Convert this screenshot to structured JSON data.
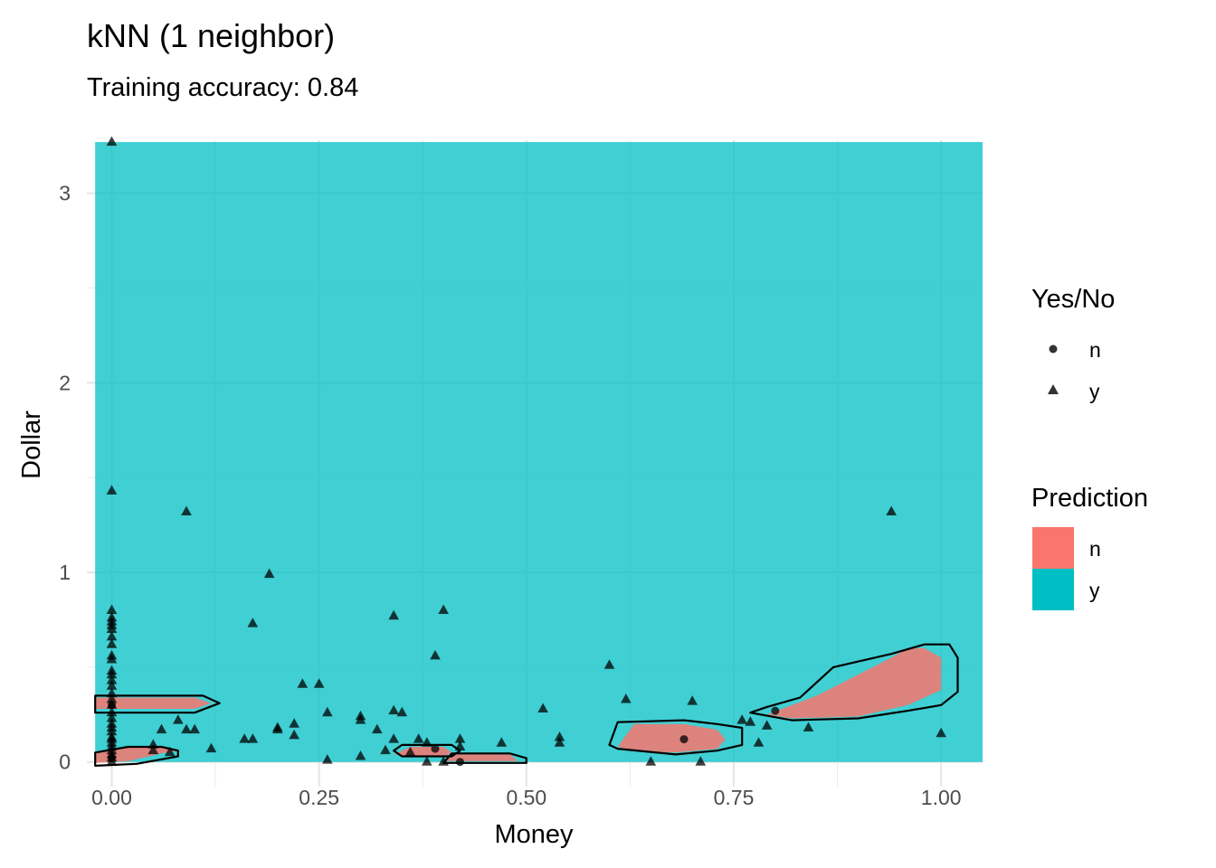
{
  "chart_data": {
    "type": "scatter",
    "title": "kNN (1 neighbor)",
    "subtitle": "Training accuracy: 0.84",
    "xlabel": "Money",
    "ylabel": "Dollar",
    "xlim": [
      -0.03,
      1.05
    ],
    "ylim": [
      -0.13,
      3.28
    ],
    "x_ticks": [
      0,
      0.25,
      0.5,
      0.75,
      1.0
    ],
    "x_tick_labels": [
      "0.00",
      "0.25",
      "0.50",
      "0.75",
      "1.00"
    ],
    "y_ticks": [
      0,
      1,
      2,
      3
    ],
    "y_tick_labels": [
      "0",
      "1",
      "2",
      "3"
    ],
    "grid": true,
    "background_region": {
      "x": [
        -0.02,
        1.05
      ],
      "y": [
        0,
        3.27
      ]
    },
    "prediction_colors": {
      "n": "#F8766D",
      "y": "#00BFC4"
    },
    "prediction_regions_n": [
      [
        [
          -0.02,
          0.28
        ],
        [
          0.1,
          0.28
        ],
        [
          0.12,
          0.31
        ],
        [
          0.1,
          0.34
        ],
        [
          -0.02,
          0.34
        ]
      ],
      [
        [
          -0.02,
          -0.005
        ],
        [
          0.02,
          0.005
        ],
        [
          0.06,
          0.045
        ],
        [
          0.08,
          0.06
        ],
        [
          0.06,
          0.075
        ],
        [
          0.02,
          0.075
        ],
        [
          -0.02,
          0.045
        ]
      ],
      [
        [
          0.34,
          0.04
        ],
        [
          0.36,
          0.08
        ],
        [
          0.4,
          0.08
        ],
        [
          0.41,
          0.05
        ],
        [
          0.4,
          0.03
        ],
        [
          0.36,
          0.03
        ]
      ],
      [
        [
          0.4,
          0.005
        ],
        [
          0.41,
          0.04
        ],
        [
          0.48,
          0.04
        ],
        [
          0.49,
          0.005
        ]
      ],
      [
        [
          0.61,
          0.08
        ],
        [
          0.63,
          0.2
        ],
        [
          0.69,
          0.2
        ],
        [
          0.73,
          0.17
        ],
        [
          0.74,
          0.12
        ],
        [
          0.73,
          0.07
        ],
        [
          0.68,
          0.05
        ],
        [
          0.63,
          0.06
        ]
      ],
      [
        [
          0.79,
          0.25
        ],
        [
          0.85,
          0.35
        ],
        [
          0.94,
          0.55
        ],
        [
          0.96,
          0.6
        ],
        [
          0.98,
          0.6
        ],
        [
          1.0,
          0.55
        ],
        [
          1.0,
          0.38
        ],
        [
          0.96,
          0.3
        ],
        [
          0.9,
          0.24
        ],
        [
          0.82,
          0.23
        ]
      ]
    ],
    "prediction_outlines": [
      [
        [
          -0.02,
          0.26
        ],
        [
          0.1,
          0.26
        ],
        [
          0.13,
          0.31
        ],
        [
          0.11,
          0.35
        ],
        [
          -0.02,
          0.35
        ]
      ],
      [
        [
          -0.02,
          -0.02
        ],
        [
          0.03,
          -0.01
        ],
        [
          0.08,
          0.03
        ],
        [
          0.08,
          0.06
        ],
        [
          0.06,
          0.08
        ],
        [
          0.02,
          0.08
        ],
        [
          -0.02,
          0.05
        ]
      ],
      [
        [
          0.34,
          0.06
        ],
        [
          0.35,
          0.09
        ],
        [
          0.41,
          0.09
        ],
        [
          0.42,
          0.06
        ],
        [
          0.41,
          0.03
        ],
        [
          0.35,
          0.03
        ]
      ],
      [
        [
          0.4,
          -0.005
        ],
        [
          0.41,
          0.045
        ],
        [
          0.48,
          0.045
        ],
        [
          0.5,
          0.02
        ],
        [
          0.5,
          -0.005
        ]
      ],
      [
        [
          0.6,
          0.09
        ],
        [
          0.61,
          0.21
        ],
        [
          0.69,
          0.22
        ],
        [
          0.73,
          0.2
        ],
        [
          0.76,
          0.18
        ],
        [
          0.76,
          0.09
        ],
        [
          0.73,
          0.06
        ],
        [
          0.68,
          0.04
        ],
        [
          0.61,
          0.07
        ]
      ],
      [
        [
          0.77,
          0.26
        ],
        [
          0.79,
          0.29
        ],
        [
          0.83,
          0.34
        ],
        [
          0.87,
          0.5
        ],
        [
          0.94,
          0.57
        ],
        [
          0.98,
          0.62
        ],
        [
          1.01,
          0.62
        ],
        [
          1.02,
          0.55
        ],
        [
          1.02,
          0.37
        ],
        [
          1.0,
          0.3
        ],
        [
          0.96,
          0.27
        ],
        [
          0.9,
          0.23
        ],
        [
          0.82,
          0.22
        ]
      ]
    ],
    "series": [
      {
        "name": "n",
        "shape": "circle",
        "x": [
          0.69,
          0.8,
          0.42,
          0.39,
          0.0,
          0.0
        ],
        "y": [
          0.12,
          0.27,
          0.0,
          0.07,
          0.02,
          0.3
        ]
      },
      {
        "name": "y",
        "shape": "triangle",
        "x": [
          0.0,
          0.0,
          0.0,
          0.0,
          0.0,
          0.0,
          0.0,
          0.0,
          0.0,
          0.0,
          0.0,
          0.0,
          0.0,
          0.0,
          0.0,
          0.0,
          0.0,
          0.0,
          0.0,
          0.0,
          0.0,
          0.0,
          0.0,
          0.0,
          0.0,
          0.0,
          0.0,
          0.0,
          0.0,
          0.0,
          0.0,
          0.09,
          0.19,
          0.17,
          0.34,
          0.4,
          0.39,
          0.05,
          0.06,
          0.08,
          0.09,
          0.1,
          0.12,
          0.16,
          0.17,
          0.2,
          0.2,
          0.22,
          0.22,
          0.23,
          0.25,
          0.26,
          0.26,
          0.3,
          0.3,
          0.3,
          0.32,
          0.33,
          0.34,
          0.34,
          0.35,
          0.36,
          0.37,
          0.38,
          0.38,
          0.4,
          0.42,
          0.42,
          0.47,
          0.52,
          0.54,
          0.54,
          0.6,
          0.62,
          0.65,
          0.7,
          0.71,
          0.76,
          0.77,
          0.78,
          0.79,
          0.84,
          0.94,
          1.0,
          0.07,
          0.05
        ],
        "y": [
          3.27,
          1.43,
          0.8,
          0.76,
          0.72,
          0.7,
          0.66,
          0.62,
          0.48,
          0.46,
          0.43,
          0.4,
          0.36,
          0.33,
          0.3,
          0.26,
          0.23,
          0.2,
          0.18,
          0.16,
          0.13,
          0.1,
          0.08,
          0.06,
          0.04,
          0.02,
          0.0,
          0.12,
          0.56,
          0.54,
          0.74,
          1.32,
          0.99,
          0.73,
          0.77,
          0.8,
          0.56,
          0.09,
          0.17,
          0.22,
          0.17,
          0.17,
          0.07,
          0.12,
          0.12,
          0.17,
          0.18,
          0.2,
          0.14,
          0.41,
          0.41,
          0.26,
          0.01,
          0.24,
          0.22,
          0.03,
          0.17,
          0.06,
          0.27,
          0.12,
          0.26,
          0.05,
          0.12,
          0.0,
          0.1,
          0.0,
          0.08,
          0.12,
          0.1,
          0.28,
          0.13,
          0.1,
          0.51,
          0.33,
          0.0,
          0.32,
          0.0,
          0.22,
          0.21,
          0.1,
          0.19,
          0.18,
          1.32,
          0.15,
          0.05,
          0.06
        ]
      }
    ],
    "legend": [
      {
        "title": "Yes/No",
        "entries": [
          {
            "label": "n",
            "shape": "circle"
          },
          {
            "label": "y",
            "shape": "triangle"
          }
        ]
      },
      {
        "title": "Prediction",
        "entries": [
          {
            "label": "n",
            "color": "#F8766D"
          },
          {
            "label": "y",
            "color": "#00BFC4"
          }
        ]
      }
    ],
    "legend_position": "right"
  }
}
